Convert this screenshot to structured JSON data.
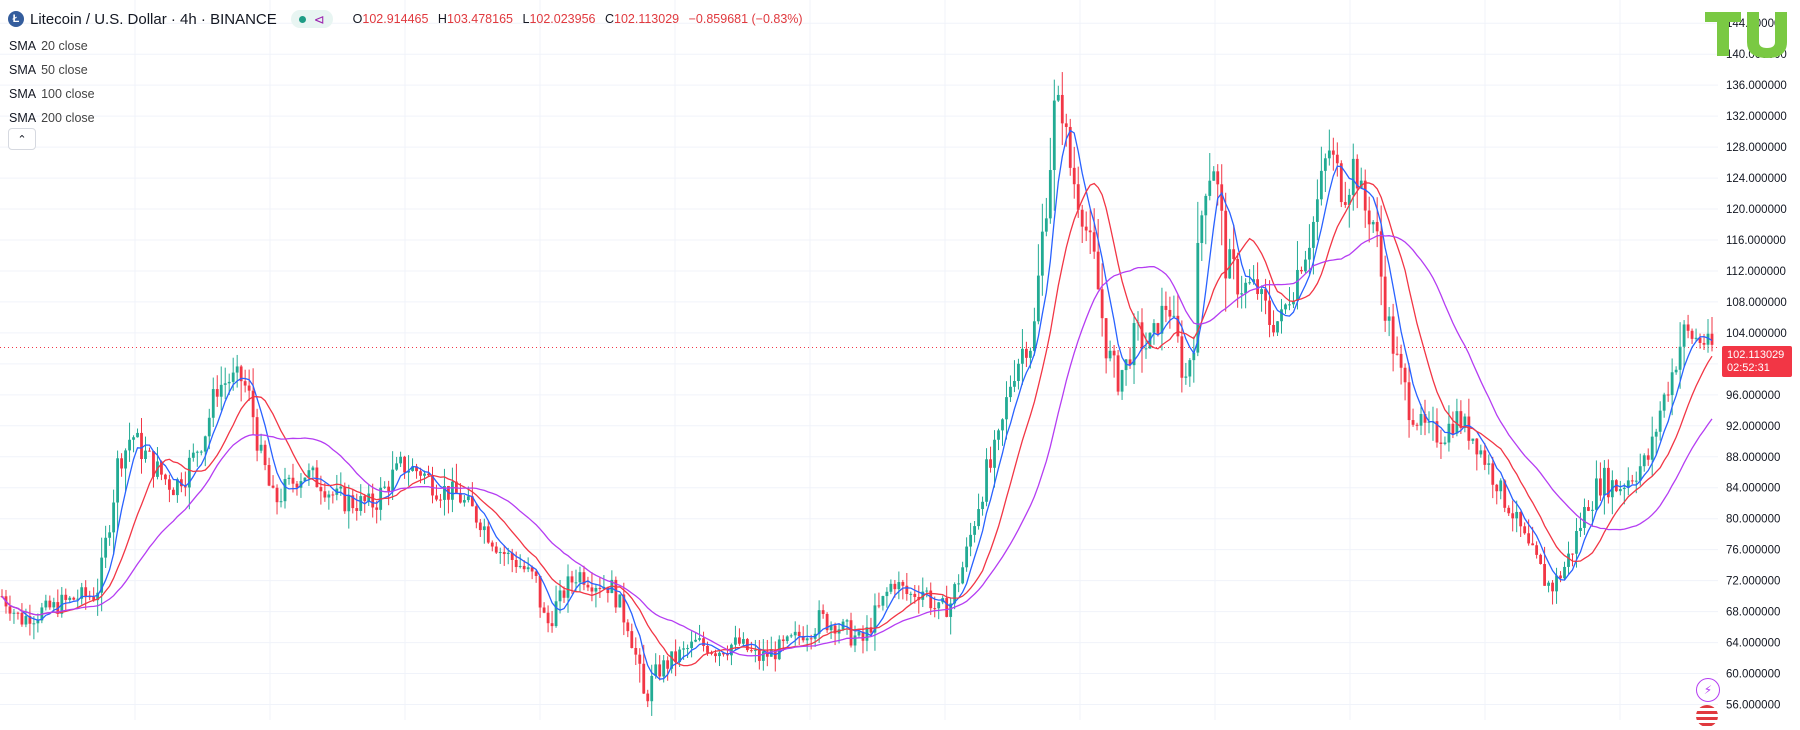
{
  "header": {
    "coin_glyph": "Ł",
    "symbol": "Litecoin / U.S. Dollar · 4h · BINANCE",
    "ohlc": {
      "o_label": "O",
      "o": "102.914465",
      "h_label": "H",
      "h": "103.478165",
      "l_label": "L",
      "l": "102.023956",
      "c_label": "C",
      "c": "102.113029",
      "change": "−0.859681 (−0.83%)"
    }
  },
  "indicators": [
    {
      "label": "SMA",
      "params": "20 close",
      "color": "#2962ff"
    },
    {
      "label": "SMA",
      "params": "50 close",
      "color": "#f23645"
    },
    {
      "label": "SMA",
      "params": "100 close",
      "color": "#2ca02c"
    },
    {
      "label": "SMA",
      "params": "200 close",
      "color": "#b53df2"
    }
  ],
  "collapse_glyph": "⌃",
  "price_label": {
    "price": "102.113029",
    "countdown": "02:52:31"
  },
  "logo_text": "TU",
  "icons": [
    "litecoin-icon",
    "share-icon",
    "chevron-up-icon",
    "flash-icon",
    "us-flag-icon"
  ],
  "colors": {
    "up": "#22ab94",
    "down": "#f23645",
    "accent_red": "#f23645",
    "sma20": "#2962ff",
    "sma50": "#f23645",
    "sma200": "#b53df2",
    "logo": "#7ac943"
  },
  "chart_data": {
    "type": "candlestick",
    "yaxis_ticks": [
      "144.000000",
      "140.000000",
      "136.000000",
      "132.000000",
      "128.000000",
      "124.000000",
      "120.000000",
      "116.000000",
      "112.000000",
      "108.000000",
      "104.000000",
      "100.000000",
      "96.000000",
      "92.000000",
      "88.000000",
      "84.000000",
      "80.000000",
      "76.000000",
      "72.000000",
      "68.000000",
      "64.000000",
      "60.000000",
      "56.000000"
    ],
    "ylim": [
      54,
      147
    ],
    "last_price": 102.113,
    "anchors": [
      [
        0,
        70
      ],
      [
        18,
        67
      ],
      [
        38,
        68
      ],
      [
        58,
        69
      ],
      [
        75,
        70
      ],
      [
        88,
        70
      ],
      [
        95,
        72
      ],
      [
        110,
        86
      ],
      [
        125,
        91
      ],
      [
        140,
        88
      ],
      [
        152,
        86
      ],
      [
        165,
        84
      ],
      [
        178,
        86
      ],
      [
        195,
        91
      ],
      [
        208,
        97
      ],
      [
        220,
        98
      ],
      [
        232,
        98
      ],
      [
        240,
        95
      ],
      [
        250,
        88
      ],
      [
        262,
        82
      ],
      [
        275,
        84
      ],
      [
        290,
        86
      ],
      [
        305,
        85
      ],
      [
        320,
        83
      ],
      [
        340,
        82
      ],
      [
        360,
        82
      ],
      [
        385,
        87
      ],
      [
        405,
        86
      ],
      [
        420,
        84
      ],
      [
        440,
        83
      ],
      [
        460,
        80
      ],
      [
        480,
        76
      ],
      [
        500,
        74
      ],
      [
        515,
        72
      ],
      [
        525,
        66
      ],
      [
        540,
        70
      ],
      [
        555,
        73
      ],
      [
        570,
        72
      ],
      [
        590,
        71
      ],
      [
        605,
        66
      ],
      [
        612,
        62
      ],
      [
        620,
        56
      ],
      [
        630,
        60
      ],
      [
        650,
        62
      ],
      [
        670,
        64
      ],
      [
        690,
        63
      ],
      [
        710,
        64
      ],
      [
        730,
        62
      ],
      [
        750,
        63
      ],
      [
        770,
        65
      ],
      [
        790,
        67
      ],
      [
        810,
        66
      ],
      [
        830,
        64
      ],
      [
        845,
        68
      ],
      [
        860,
        72
      ],
      [
        875,
        70
      ],
      [
        890,
        71
      ],
      [
        902,
        68
      ],
      [
        915,
        69
      ],
      [
        930,
        75
      ],
      [
        945,
        84
      ],
      [
        955,
        87
      ],
      [
        965,
        92
      ],
      [
        975,
        99
      ],
      [
        985,
        102
      ],
      [
        995,
        103
      ],
      [
        1005,
        118
      ],
      [
        1015,
        132
      ],
      [
        1022,
        134
      ],
      [
        1030,
        126
      ],
      [
        1045,
        118
      ],
      [
        1055,
        112
      ],
      [
        1065,
        103
      ],
      [
        1075,
        98
      ],
      [
        1085,
        100
      ],
      [
        1095,
        104
      ],
      [
        1105,
        102
      ],
      [
        1115,
        105
      ],
      [
        1125,
        108
      ],
      [
        1135,
        102
      ],
      [
        1142,
        98
      ],
      [
        1150,
        104
      ],
      [
        1160,
        124
      ],
      [
        1170,
        126
      ],
      [
        1180,
        114
      ],
      [
        1195,
        110
      ],
      [
        1210,
        110
      ],
      [
        1225,
        105
      ],
      [
        1235,
        106
      ],
      [
        1250,
        112
      ],
      [
        1265,
        118
      ],
      [
        1280,
        128
      ],
      [
        1295,
        122
      ],
      [
        1305,
        126
      ],
      [
        1315,
        120
      ],
      [
        1325,
        118
      ],
      [
        1332,
        110
      ],
      [
        1340,
        104
      ],
      [
        1350,
        98
      ],
      [
        1360,
        94
      ],
      [
        1375,
        91
      ],
      [
        1390,
        91
      ],
      [
        1405,
        93
      ],
      [
        1418,
        91
      ],
      [
        1430,
        88
      ],
      [
        1445,
        84
      ],
      [
        1460,
        80
      ],
      [
        1472,
        76
      ],
      [
        1485,
        73
      ],
      [
        1495,
        71
      ],
      [
        1505,
        73
      ],
      [
        1515,
        76
      ],
      [
        1530,
        82
      ],
      [
        1545,
        85
      ],
      [
        1560,
        84
      ],
      [
        1575,
        86
      ],
      [
        1590,
        88
      ],
      [
        1600,
        94
      ],
      [
        1612,
        99
      ],
      [
        1622,
        104
      ],
      [
        1640,
        103
      ],
      [
        1650,
        102.1
      ]
    ],
    "candle_count": 430,
    "x_range": [
      0,
      1650
    ]
  }
}
